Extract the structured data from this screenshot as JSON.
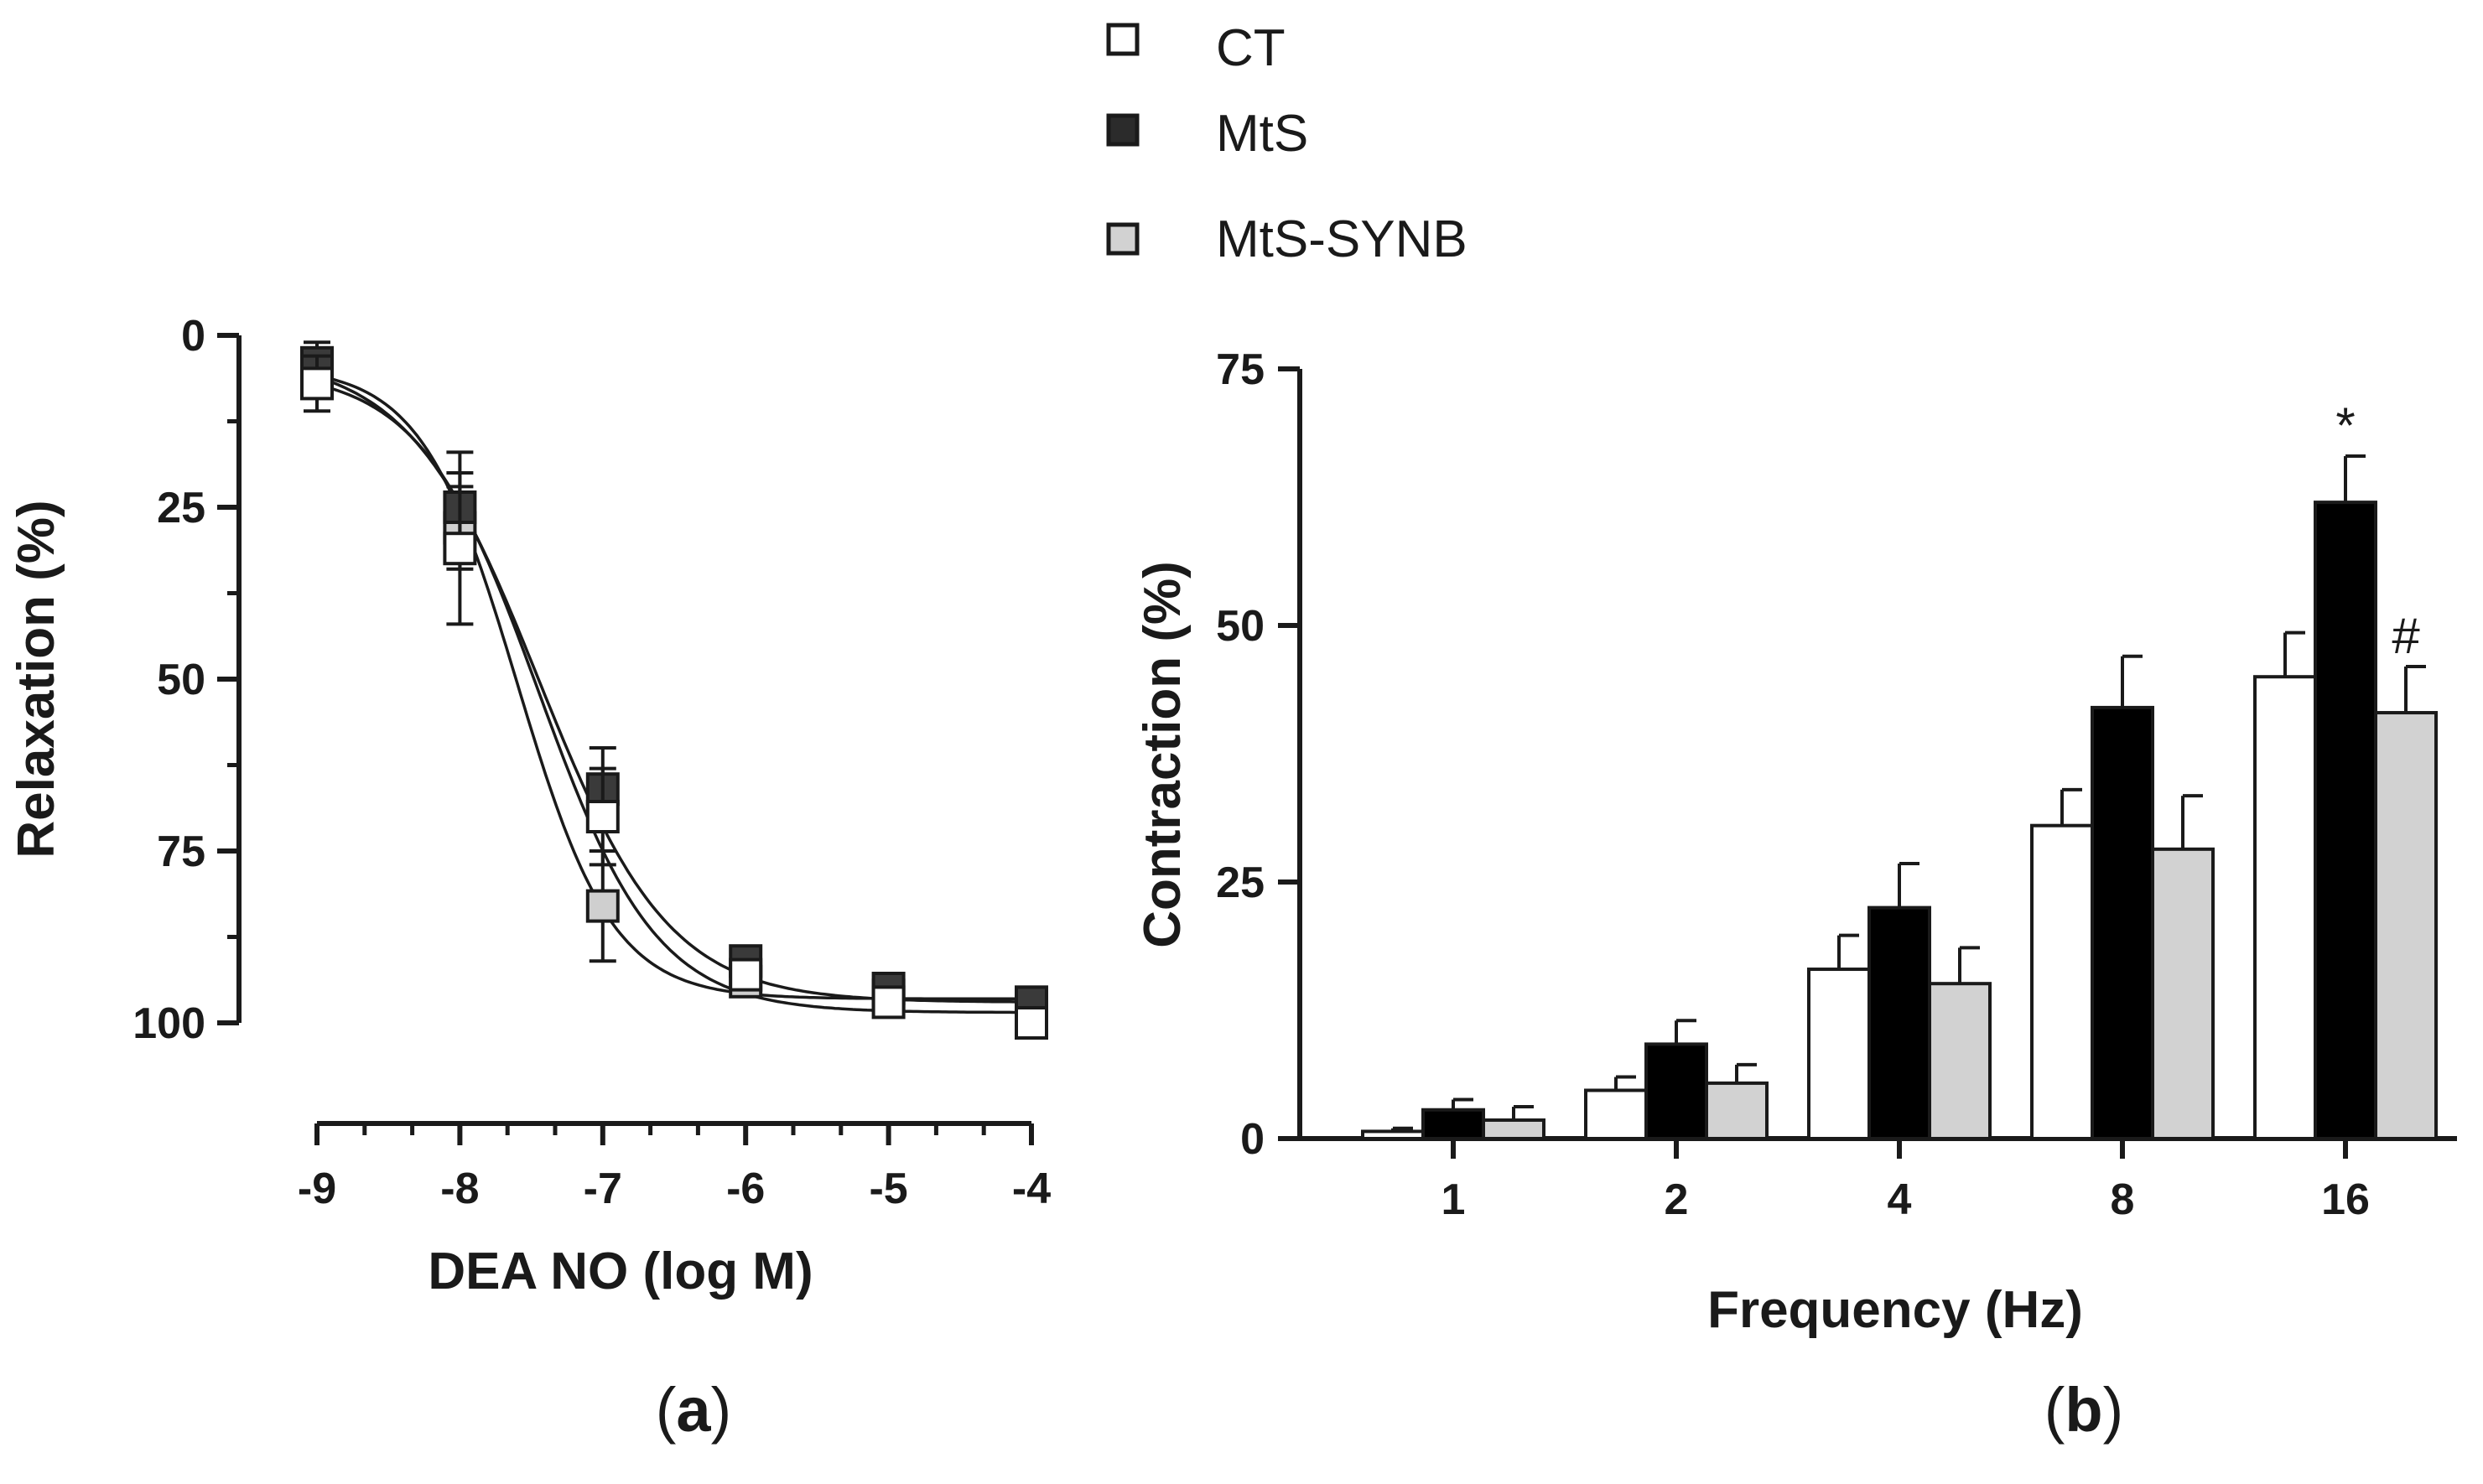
{
  "legend": {
    "entries": [
      {
        "label": "CT",
        "color": "#ffffff",
        "marker": "square-open"
      },
      {
        "label": "MtS",
        "color": "#2b2b2b",
        "marker": "square-filled"
      },
      {
        "label": "MtS-SYNB",
        "color": "#d2d2d2",
        "marker": "square-gray"
      }
    ]
  },
  "panels": {
    "a": {
      "label_open": "(",
      "label_letter": "a",
      "label_close": ")"
    },
    "b": {
      "label_open": "(",
      "label_letter": "b",
      "label_close": ")"
    }
  },
  "chart_data": [
    {
      "type": "line",
      "panel": "a",
      "xlabel": "DEA NO (log M)",
      "ylabel": "Relaxation  (%)",
      "xlim": [
        -9,
        -4
      ],
      "ylim": [
        0,
        100
      ],
      "y_inverted": true,
      "x_ticks": [
        -9,
        -8,
        -7,
        -6,
        -5,
        -4
      ],
      "x_tick_labels": [
        "-9",
        "-8",
        "-7",
        "-6",
        "-5",
        "-4"
      ],
      "y_ticks": [
        0,
        25,
        50,
        75,
        100
      ],
      "y_tick_labels": [
        "0",
        "25",
        "50",
        "75",
        "100"
      ],
      "x": [
        -9,
        -8,
        -7,
        -6,
        -5,
        -4
      ],
      "series": [
        {
          "name": "CT",
          "color": "#ffffff",
          "values": [
            7,
            31,
            70,
            93,
            97,
            100
          ],
          "errors": [
            4,
            11,
            7,
            2,
            2,
            2
          ],
          "fit": {
            "bottom": 5,
            "top": 98.5,
            "logEC50": -7.45,
            "hill": 1.05
          }
        },
        {
          "name": "MtS",
          "color": "#3a3a3a",
          "values": [
            4,
            25,
            66,
            91,
            95,
            97
          ],
          "errors": [
            3,
            8,
            6,
            2,
            2,
            1.5
          ],
          "fit": {
            "bottom": 3,
            "top": 97,
            "logEC50": -7.45,
            "hill": 0.95
          }
        },
        {
          "name": "MtS-SYNB",
          "color": "#cfcfcf",
          "values": [
            6,
            28,
            83,
            94,
            96,
            97
          ],
          "errors": [
            3,
            6,
            8,
            2,
            2,
            1.5
          ],
          "fit": {
            "bottom": 4.5,
            "top": 96.5,
            "logEC50": -7.6,
            "hill": 1.3
          }
        }
      ]
    },
    {
      "type": "bar",
      "panel": "b",
      "xlabel": "Frequency (Hz)",
      "ylabel": "Contraction (%)",
      "ylim": [
        0,
        75
      ],
      "y_ticks": [
        0,
        25,
        50,
        75
      ],
      "y_tick_labels": [
        "0",
        "25",
        "50",
        "75"
      ],
      "categories": [
        "1",
        "2",
        "4",
        "8",
        "16"
      ],
      "series": [
        {
          "name": "CT",
          "color": "#ffffff",
          "values": [
            0.7,
            4.7,
            16.5,
            30.5,
            45
          ],
          "errors": [
            0.3,
            1.3,
            3.3,
            3.5,
            4.3
          ]
        },
        {
          "name": "MtS",
          "color": "#000000",
          "values": [
            2.8,
            9.2,
            22.5,
            42,
            62
          ],
          "errors": [
            1.0,
            2.3,
            4.3,
            5,
            4.5
          ]
        },
        {
          "name": "MtS-SYNB",
          "color": "#d2d2d2",
          "values": [
            1.8,
            5.4,
            15.1,
            28.2,
            41.5
          ],
          "errors": [
            1.3,
            1.8,
            3.5,
            5.2,
            4.5
          ]
        }
      ],
      "annotations": [
        {
          "category": "16",
          "series": "MtS",
          "text": "*"
        },
        {
          "category": "16",
          "series": "MtS-SYNB",
          "text": "#"
        }
      ]
    }
  ]
}
